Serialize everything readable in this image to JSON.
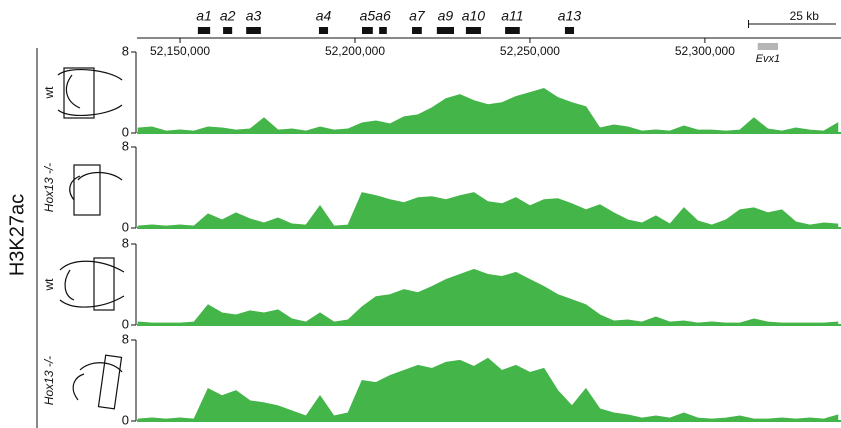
{
  "chart_data": {
    "type": "area",
    "y_axis_label": "H3K27ac",
    "color": "#44b549",
    "xlim": [
      52137700,
      52338900
    ],
    "xticks": [
      {
        "value": 52150000,
        "label": "52,150,000"
      },
      {
        "value": 52200000,
        "label": "52,200,000"
      },
      {
        "value": 52250000,
        "label": "52,250,000"
      },
      {
        "value": 52300000,
        "label": "52,300,000"
      }
    ],
    "ylim": [
      0,
      8
    ],
    "yticks": [
      0,
      8
    ],
    "scale_bar": {
      "label": "25 kb",
      "length": 25000
    },
    "genes": [
      {
        "name": "a1",
        "start": 52155100,
        "end": 52158600,
        "color": "#111111"
      },
      {
        "name": "a2",
        "start": 52162300,
        "end": 52164900,
        "color": "#111111"
      },
      {
        "name": "a3",
        "start": 52168900,
        "end": 52173100,
        "color": "#111111"
      },
      {
        "name": "a4",
        "start": 52189700,
        "end": 52192300,
        "color": "#111111"
      },
      {
        "name": "a5",
        "start": 52202000,
        "end": 52205100,
        "color": "#111111"
      },
      {
        "name": "a6",
        "start": 52206900,
        "end": 52209100,
        "color": "#111111"
      },
      {
        "name": "a7",
        "start": 52216300,
        "end": 52219100,
        "color": "#111111"
      },
      {
        "name": "a9",
        "start": 52223400,
        "end": 52228300,
        "color": "#111111"
      },
      {
        "name": "a10",
        "start": 52231700,
        "end": 52236000,
        "color": "#111111"
      },
      {
        "name": "a11",
        "start": 52242900,
        "end": 52247100,
        "color": "#111111"
      },
      {
        "name": "a13",
        "start": 52260000,
        "end": 52262600,
        "color": "#111111"
      },
      {
        "name": "Evx1",
        "start": 52315100,
        "end": 52320900,
        "color": "#b5b5b5"
      }
    ],
    "x": [
      52138000,
      52142000,
      52146000,
      52150000,
      52154000,
      52158000,
      52162000,
      52166000,
      52170000,
      52174000,
      52178000,
      52182000,
      52186000,
      52190000,
      52194000,
      52198000,
      52202000,
      52206000,
      52210000,
      52214000,
      52218000,
      52222000,
      52226000,
      52230000,
      52234000,
      52238000,
      52242000,
      52246000,
      52250000,
      52254000,
      52258000,
      52262000,
      52266000,
      52270000,
      52274000,
      52278000,
      52282000,
      52286000,
      52290000,
      52294000,
      52298000,
      52302000,
      52306000,
      52310000,
      52314000,
      52318000,
      52322000,
      52326000,
      52330000,
      52334000,
      52338000
    ],
    "series": [
      {
        "name": "wt",
        "values": [
          0.5,
          0.6,
          0.2,
          0.3,
          0.2,
          0.6,
          0.5,
          0.3,
          0.4,
          1.5,
          0.3,
          0.4,
          0.2,
          0.6,
          0.3,
          0.4,
          1.0,
          1.2,
          0.9,
          1.6,
          1.8,
          2.5,
          3.4,
          3.8,
          3.2,
          2.8,
          3.0,
          3.6,
          4.0,
          4.4,
          3.5,
          3.0,
          2.6,
          0.5,
          0.8,
          0.6,
          0.2,
          0.3,
          0.2,
          0.7,
          0.3,
          0.3,
          0.2,
          0.3,
          1.5,
          0.4,
          0.2,
          0.5,
          0.3,
          0.2,
          1.0
        ]
      },
      {
        "name": "Hox13 -/-",
        "values": [
          0.2,
          0.3,
          0.2,
          0.3,
          0.2,
          1.4,
          0.8,
          1.5,
          0.9,
          0.5,
          1.0,
          0.4,
          0.3,
          2.2,
          0.2,
          0.3,
          3.5,
          3.2,
          2.8,
          2.5,
          3.0,
          3.1,
          2.8,
          3.2,
          3.5,
          2.6,
          2.4,
          3.0,
          2.2,
          2.8,
          2.9,
          2.4,
          1.8,
          2.3,
          1.5,
          0.8,
          0.5,
          1.2,
          0.4,
          2.0,
          0.7,
          0.3,
          0.8,
          1.8,
          2.0,
          1.5,
          1.8,
          0.6,
          0.3,
          0.5,
          0.4
        ]
      },
      {
        "name": "wt",
        "values": [
          0.3,
          0.2,
          0.2,
          0.2,
          0.3,
          2.0,
          1.2,
          1.0,
          1.4,
          1.2,
          1.5,
          0.6,
          0.3,
          1.2,
          0.3,
          0.5,
          1.8,
          2.8,
          3.0,
          3.5,
          3.2,
          3.8,
          4.5,
          5.0,
          5.5,
          5.0,
          4.8,
          5.2,
          4.5,
          3.8,
          3.0,
          2.5,
          2.0,
          1.0,
          0.4,
          0.5,
          0.3,
          0.8,
          0.3,
          0.4,
          0.2,
          0.3,
          0.2,
          0.2,
          0.6,
          0.3,
          0.2,
          0.2,
          0.2,
          0.2,
          0.3
        ]
      },
      {
        "name": "Hox13 -/-",
        "values": [
          0.2,
          0.3,
          0.2,
          0.3,
          0.2,
          3.2,
          2.5,
          3.0,
          2.0,
          1.8,
          1.5,
          1.0,
          0.5,
          2.5,
          0.5,
          0.8,
          4.0,
          3.8,
          4.5,
          5.0,
          5.5,
          5.2,
          5.8,
          6.0,
          5.4,
          6.2,
          5.0,
          5.5,
          4.8,
          5.2,
          3.0,
          1.5,
          3.2,
          1.2,
          0.8,
          0.6,
          0.3,
          0.5,
          0.3,
          0.8,
          0.3,
          0.2,
          0.3,
          0.5,
          0.2,
          0.2,
          0.3,
          0.2,
          0.3,
          0.2,
          0.6
        ]
      }
    ]
  }
}
